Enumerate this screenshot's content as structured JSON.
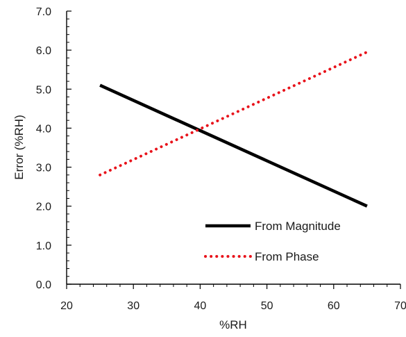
{
  "chart_data": {
    "type": "line",
    "xlabel": "%RH",
    "ylabel": "Error  (%RH)",
    "xlim": [
      20,
      70
    ],
    "ylim": [
      0,
      7
    ],
    "x_ticks": [
      "20",
      "30",
      "40",
      "50",
      "60",
      "70"
    ],
    "y_ticks": [
      "0.0",
      "1.0",
      "2.0",
      "3.0",
      "4.0",
      "5.0",
      "6.0",
      "7.0"
    ],
    "grid": false,
    "legend_position": "bottom-right",
    "series": [
      {
        "name": "From Magnitude",
        "x": [
          25,
          65
        ],
        "y": [
          5.1,
          2.0
        ],
        "color": "#000000",
        "style": "solid"
      },
      {
        "name": "From Phase",
        "x": [
          25,
          65
        ],
        "y": [
          2.8,
          5.95
        ],
        "color": "#e8131b",
        "style": "dotted"
      }
    ]
  }
}
